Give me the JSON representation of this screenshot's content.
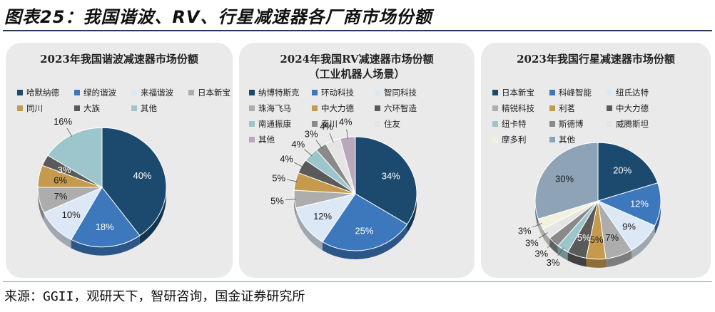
{
  "figure_title": "图表25：我国谐波、RV、行星减速器各厂商市场份额",
  "source": "来源：GGII，观研天下，智研咨询，国金证券研究所",
  "chart_data": [
    {
      "type": "pie",
      "title": "2023年我国谐波减速器市场份额",
      "subtitle": "",
      "categories": [
        "哈默纳德",
        "绿的谐波",
        "来福谐波",
        "日本新宝",
        "同川",
        "大族",
        "其他"
      ],
      "values": [
        40,
        18,
        10,
        7,
        6,
        3,
        16
      ],
      "labels": [
        "40%",
        "18%",
        "10%",
        "7%",
        "6%",
        "3%",
        "16%"
      ],
      "colors": [
        "#1b4a6e",
        "#3d78bd",
        "#dde8f6",
        "#adadad",
        "#c59a4d",
        "#5a5a5a",
        "#9cc6cb"
      ],
      "legend_position": "top"
    },
    {
      "type": "pie",
      "title": "2024年我国RV减速器市场份额",
      "subtitle": "（工业机器人场景）",
      "categories": [
        "纳博特斯克",
        "环动科技",
        "智同科技",
        "珠海飞马",
        "中大力德",
        "六环智造",
        "南通振康",
        "秦川",
        "住友",
        "其他"
      ],
      "values": [
        34,
        25,
        12,
        5,
        5,
        4,
        4,
        3,
        4,
        4
      ],
      "labels": [
        "34%",
        "25%",
        "12%",
        "5%",
        "5%",
        "4%",
        "4%",
        "3%",
        "4%",
        "4%"
      ],
      "colors": [
        "#1b4a6e",
        "#3d78bd",
        "#dde8f6",
        "#adadad",
        "#c59a4d",
        "#5a5a5a",
        "#9cc6cb",
        "#8a8a8a",
        "#e5e5e5",
        "#b9a7bc"
      ],
      "legend_position": "top"
    },
    {
      "type": "pie",
      "title": "2023年我国行星减速器市场份额",
      "subtitle": "",
      "categories": [
        "日本新宝",
        "科峰智能",
        "纽氏达特",
        "精锐科技",
        "利茗",
        "中大力德",
        "纽卡特",
        "斯德博",
        "威腾斯坦",
        "摩多利",
        "其他"
      ],
      "values": [
        20,
        12,
        9,
        7,
        5,
        5,
        3,
        3,
        3,
        3,
        30
      ],
      "labels": [
        "20%",
        "12%",
        "9%",
        "7%",
        "5%",
        "5%",
        "3%",
        "3%",
        "3%",
        "3%",
        "30%"
      ],
      "colors": [
        "#1b4a6e",
        "#3d78bd",
        "#dde8f6",
        "#adadad",
        "#c59a4d",
        "#5a5a5a",
        "#9cc6cb",
        "#8a8a8a",
        "#e5e5e5",
        "#f1f1dd",
        "#8ea3b6"
      ],
      "legend_position": "top"
    }
  ]
}
